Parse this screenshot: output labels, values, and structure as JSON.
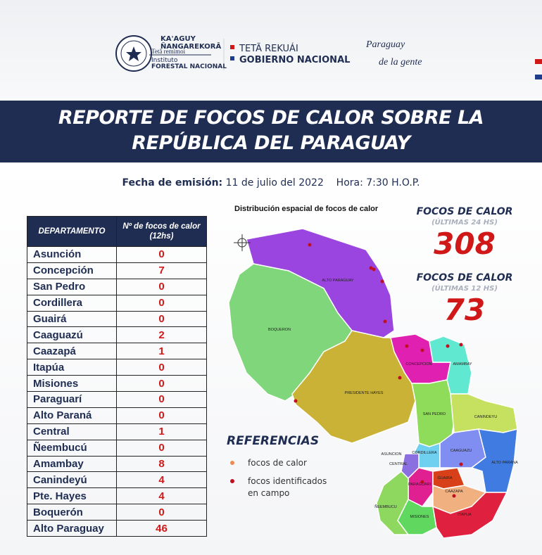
{
  "header": {
    "org_line1": "KA'AGUY",
    "org_line2": "ÑANGAREKORÃ",
    "org_line3": "Tetã remimoi",
    "org_line4": "Instituto",
    "org_line5": "FORESTAL NACIONAL",
    "gov_line1": "TETÃ REKUÁI",
    "gov_line2": "GOBIERNO NACIONAL",
    "slogan_line1": "Paraguay",
    "slogan_line2": "de la gente"
  },
  "title_lines": [
    "REPORTE DE FOCOS DE CALOR SOBRE LA",
    "REPÚBLICA DEL PARAGUAY"
  ],
  "emission": {
    "label": "Fecha de emisión:",
    "date": "11 de julio del 2022",
    "time": "Hora: 7:30  H.O.P."
  },
  "table": {
    "headers": [
      "DEPARTAMENTO",
      "Nº de focos de calor (12hs)"
    ],
    "rows": [
      [
        "Asunción",
        0
      ],
      [
        "Concepción",
        7
      ],
      [
        "San Pedro",
        0
      ],
      [
        "Cordillera",
        0
      ],
      [
        "Guairá",
        0
      ],
      [
        "Caaguazú",
        2
      ],
      [
        "Caazapá",
        1
      ],
      [
        "Itapúa",
        0
      ],
      [
        "Misiones",
        0
      ],
      [
        "Paraguarí",
        0
      ],
      [
        "Alto Paraná",
        0
      ],
      [
        "Central",
        1
      ],
      [
        "Ñeembucú",
        0
      ],
      [
        "Amambay",
        8
      ],
      [
        "Canindeyú",
        4
      ],
      [
        "Pte. Hayes",
        4
      ],
      [
        "Boquerón",
        0
      ],
      [
        "Alto Paraguay",
        46
      ]
    ]
  },
  "map": {
    "title": "Distribución espacial de focos de calor",
    "regions": [
      "ALTO PARAGUAY",
      "BOQUERON",
      "PRESIDENTE HAYES",
      "CONCEPCION",
      "AMAMBAY",
      "SAN PEDRO",
      "CANINDEYU",
      "CORDILLERA",
      "CAAGUAZU",
      "ALTO PARANA",
      "ASUNCION",
      "CENTRAL",
      "PARAGUARI",
      "GUAIRA",
      "CAAZAPA",
      "ÑEEMBUCU",
      "MISIONES",
      "ITAPUA"
    ]
  },
  "totals": [
    {
      "label": "FOCOS DE CALOR",
      "period": "(ÚLTIMAS 24 HS)",
      "value": 308
    },
    {
      "label": "FOCOS DE CALOR",
      "period": "(ÚLTIMAS 12 HS)",
      "value": 73
    }
  ],
  "legend": {
    "title": "REFERENCIAS",
    "items": [
      "focos de calor",
      "focos identificados",
      "en campo"
    ]
  }
}
